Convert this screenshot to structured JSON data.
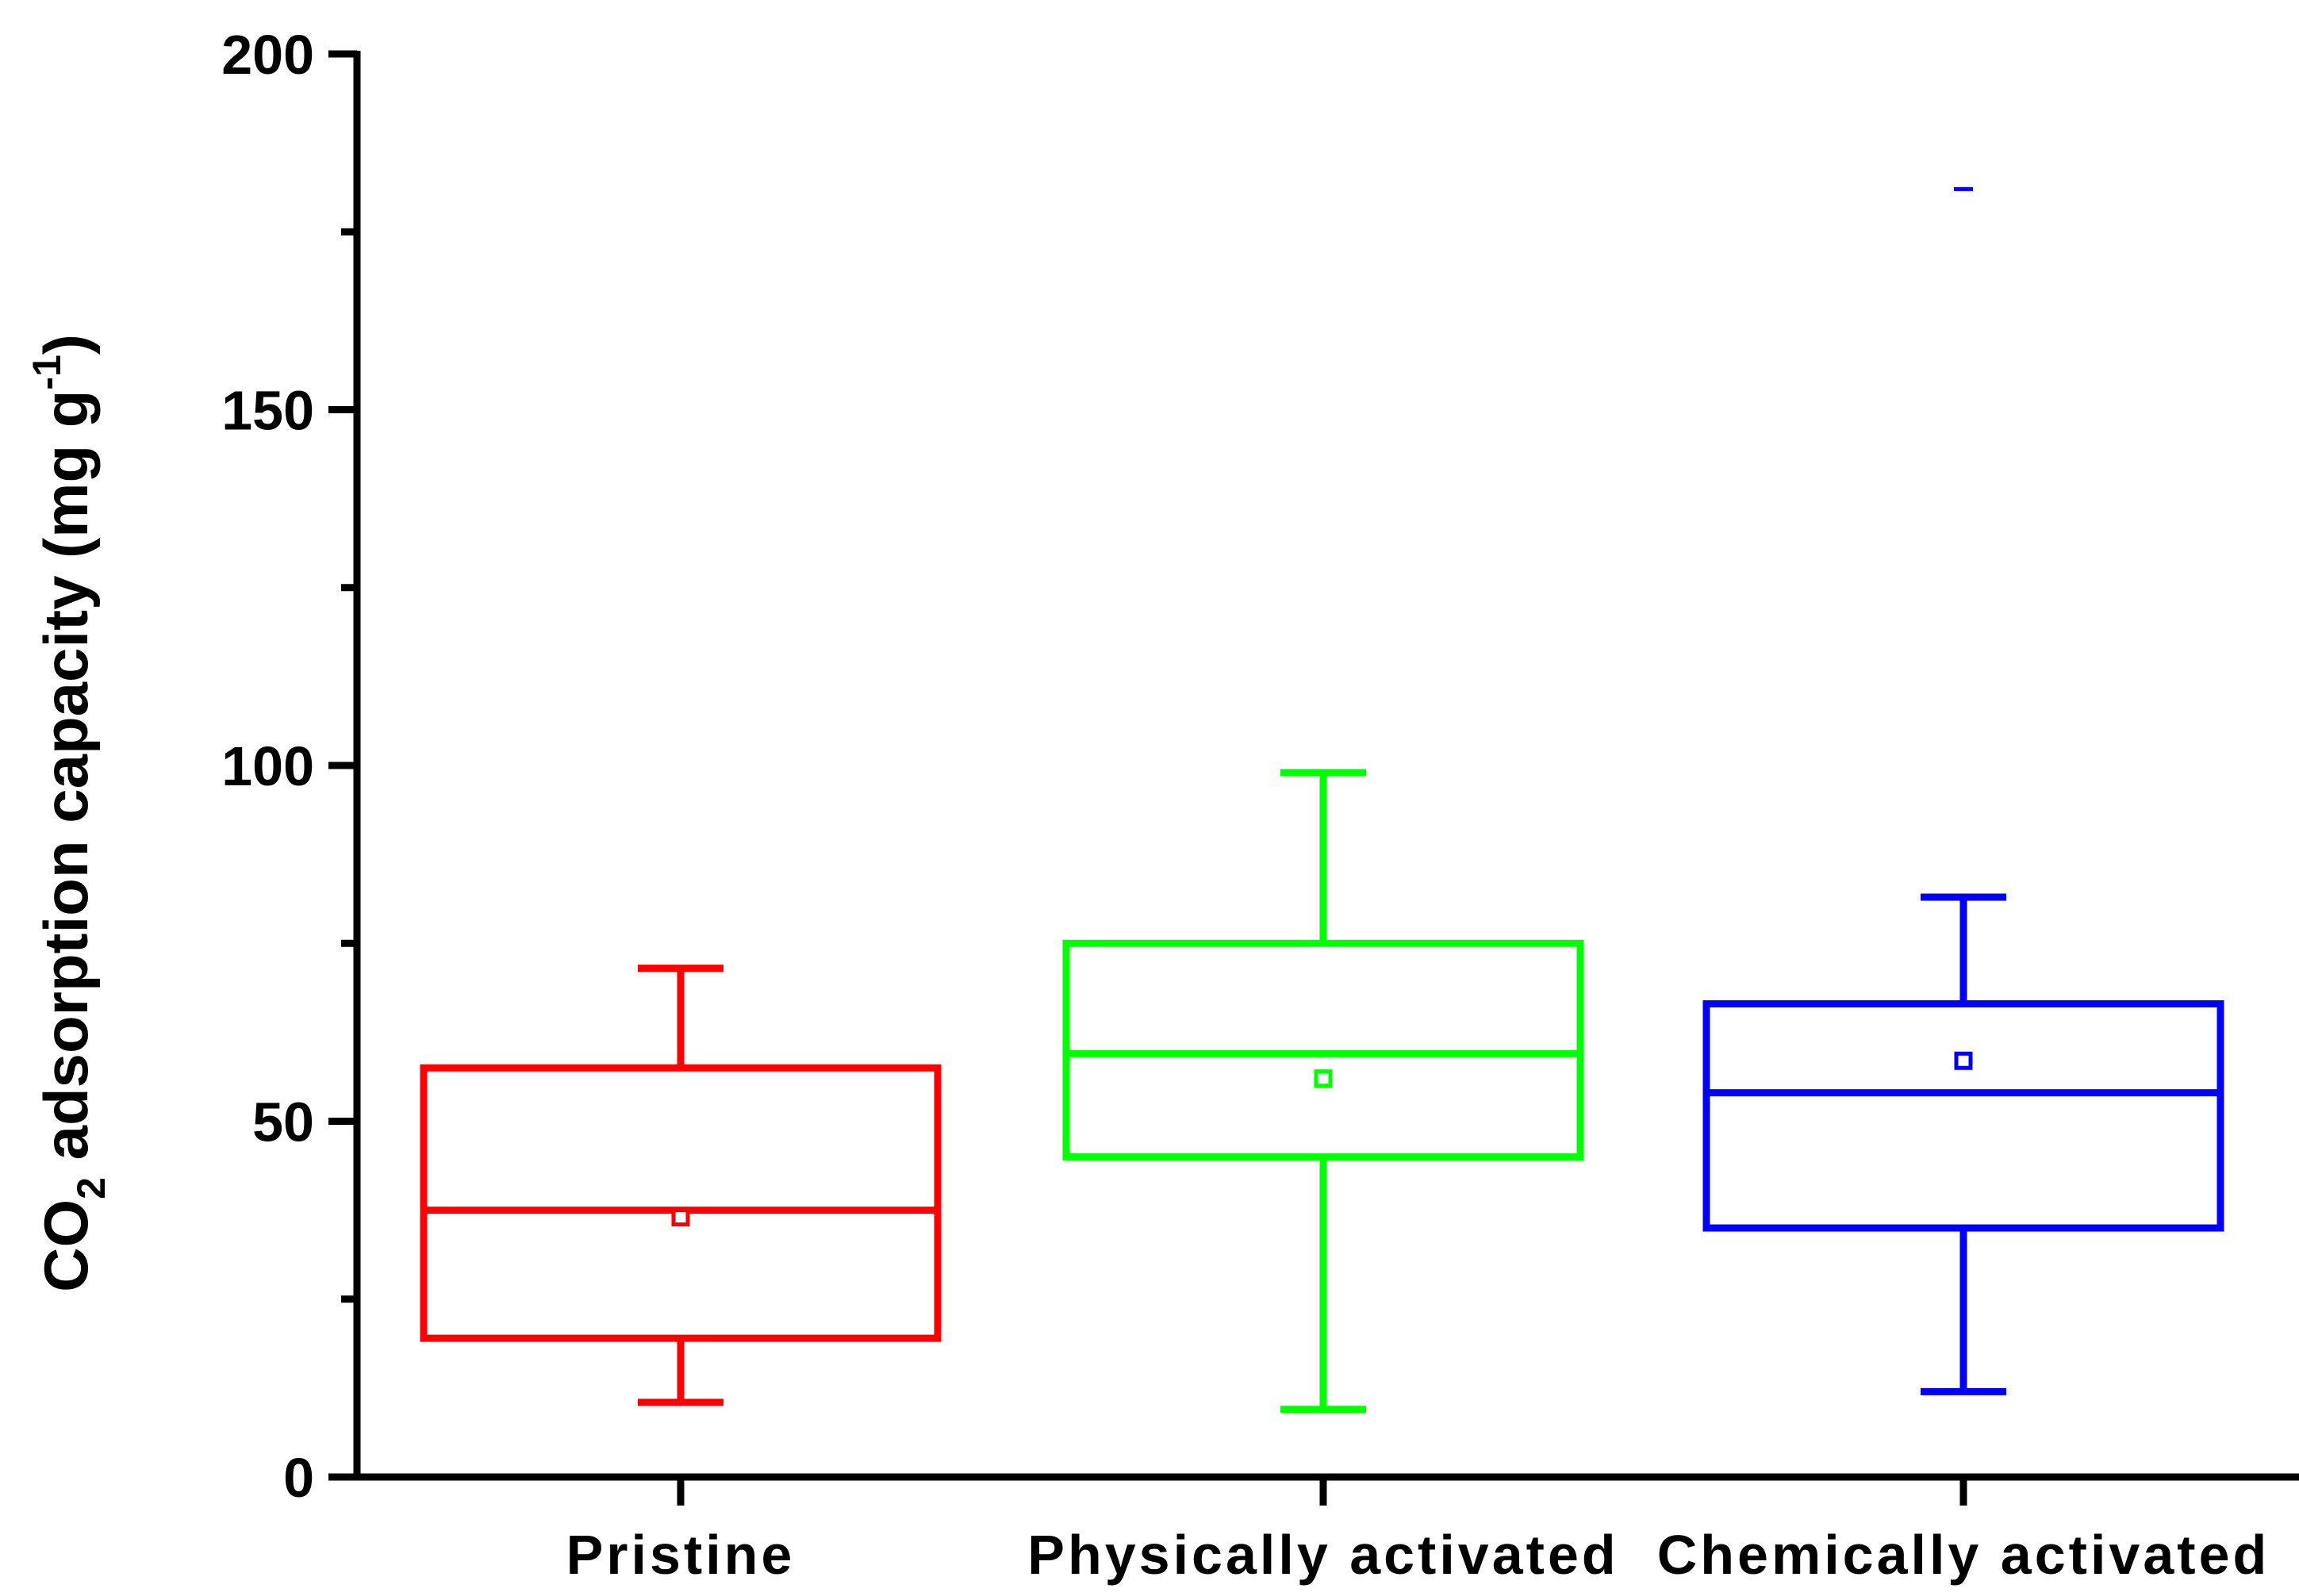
{
  "chart_data": {
    "type": "box",
    "title": "",
    "xlabel": "",
    "ylabel": {
      "pre": "CO",
      "sub": "2",
      "mid": " adsorption capacity (mg g",
      "sup": "-1",
      "post": ")"
    },
    "ylim": [
      0,
      200
    ],
    "yticks": [
      0,
      50,
      100,
      150,
      200
    ],
    "y_minor_ticks": [
      25,
      75,
      125,
      175
    ],
    "grid": false,
    "legend": "none",
    "categories": [
      "Pristine",
      "Physically activated",
      "Chemically activated"
    ],
    "series": [
      {
        "category": "Pristine",
        "color": "#ff0000",
        "whisker_low": 10.5,
        "q1": 19.5,
        "median": 37.5,
        "q3": 57.5,
        "whisker_high": 71.5,
        "mean": 36.5,
        "outliers": []
      },
      {
        "category": "Physically activated",
        "color": "#00ff00",
        "whisker_low": 9.5,
        "q1": 45,
        "median": 59.5,
        "q3": 75,
        "whisker_high": 99,
        "mean": 56,
        "outliers": []
      },
      {
        "category": "Chemically activated",
        "color": "#0000ff",
        "whisker_low": 12,
        "q1": 35,
        "median": 54,
        "q3": 66.5,
        "whisker_high": 81.5,
        "mean": 58.5,
        "outliers": [
          181
        ]
      }
    ]
  }
}
